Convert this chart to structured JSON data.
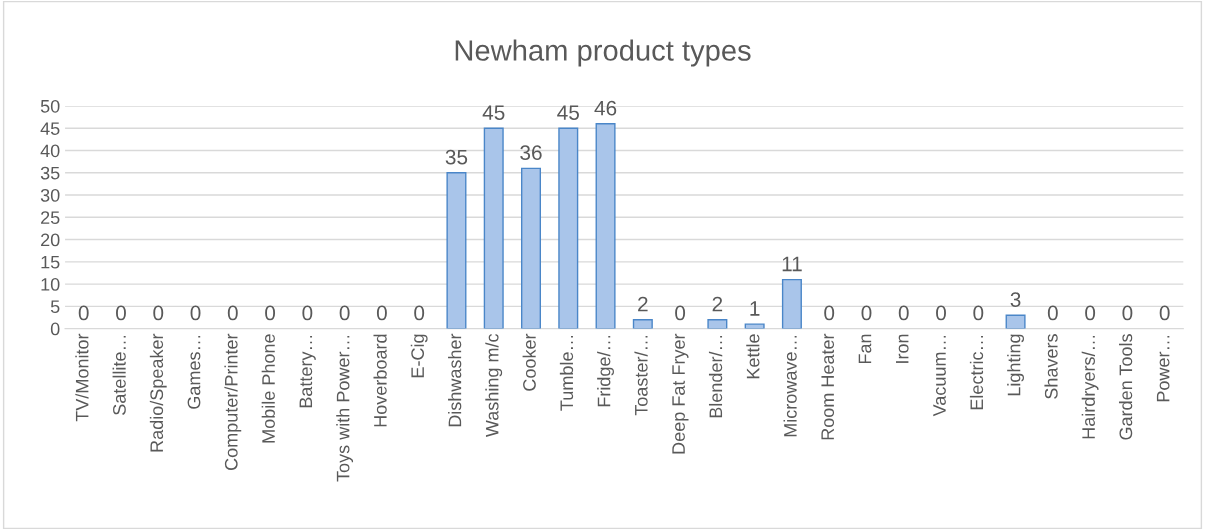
{
  "chart_data": {
    "type": "bar",
    "title": "Newham product types",
    "categories": [
      "TV/Monitor",
      "Satellite…",
      "Radio/Speaker",
      "Games…",
      "Computer/Printer",
      "Mobile Phone",
      "Battery…",
      "Toys with Power…",
      "Hoverboard",
      "E-Cig",
      "Dishwasher",
      "Washing m/c",
      "Cooker",
      "Tumble…",
      "Fridge/…",
      "Toaster/…",
      "Deep Fat Fryer",
      "Blender/…",
      "Kettle",
      "Microwave…",
      "Room Heater",
      "Fan",
      "Iron",
      "Vacuum…",
      "Electric…",
      "Lighting",
      "Shavers",
      "Hairdryers/…",
      "Garden Tools",
      "Power…"
    ],
    "series": [
      {
        "color": "#a9c5ea",
        "values": [
          0,
          0,
          0,
          0,
          0,
          0,
          0,
          0,
          0,
          0,
          35,
          45,
          36,
          45,
          46,
          2,
          0,
          2,
          1,
          11,
          0,
          0,
          0,
          0,
          0,
          3,
          0,
          0,
          0,
          0
        ]
      }
    ],
    "ylim": [
      0,
      50
    ],
    "yticks": [
      0,
      5,
      10,
      15,
      20,
      25,
      30,
      35,
      40,
      45,
      50
    ],
    "grid": "y",
    "data_labels": true,
    "legend": false
  }
}
